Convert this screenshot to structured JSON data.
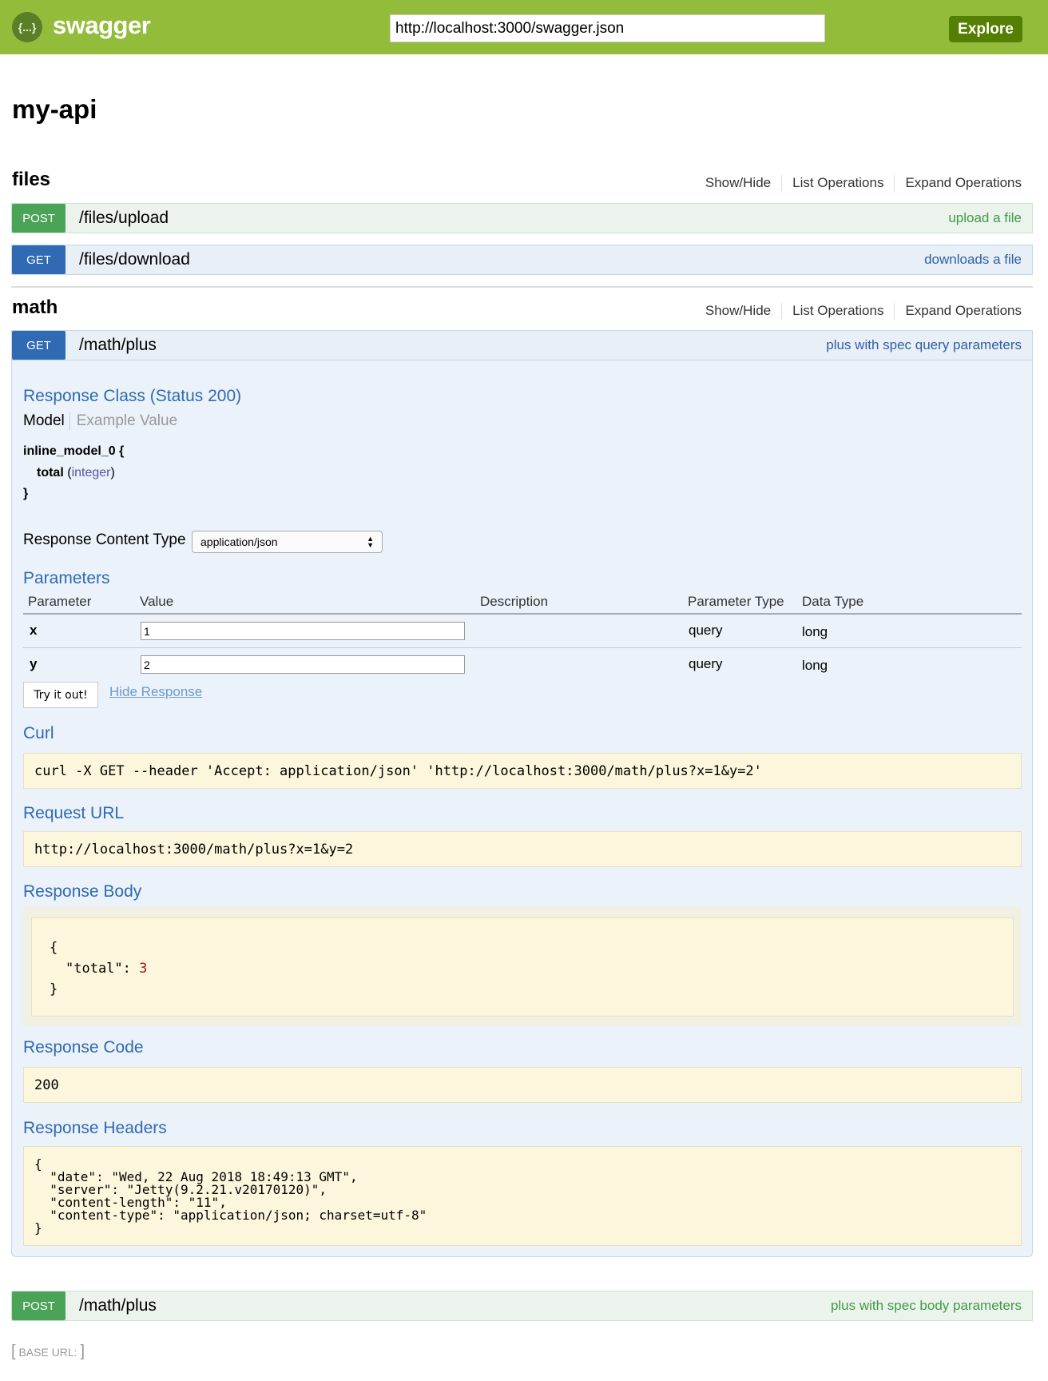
{
  "header": {
    "logo_text": "{...}",
    "brand": "swagger",
    "url": "http://localhost:3000/swagger.json",
    "explore": "Explore"
  },
  "title": "my-api",
  "colors": {
    "header": "#94bc3b",
    "post": "#4aa356",
    "get": "#2f6ab2",
    "code_bg": "#fcf6dc"
  },
  "resources": [
    {
      "name": "files",
      "links": [
        "Show/Hide",
        "List Operations",
        "Expand Operations"
      ],
      "ops": [
        {
          "method": "POST",
          "path": "/files/upload",
          "summary": "upload a file"
        },
        {
          "method": "GET",
          "path": "/files/download",
          "summary": "downloads a file"
        }
      ]
    },
    {
      "name": "math",
      "links": [
        "Show/Hide",
        "List Operations",
        "Expand Operations"
      ],
      "ops": [
        {
          "method": "GET",
          "path": "/math/plus",
          "summary": "plus with spec query parameters"
        },
        {
          "method": "POST",
          "path": "/math/plus",
          "summary": "plus with spec body parameters"
        }
      ]
    }
  ],
  "expanded": {
    "response_class": "Response Class (Status 200)",
    "tabs": [
      "Model",
      "Example Value"
    ],
    "model": {
      "name": "inline_model_0 {",
      "field": "total",
      "type": "integer",
      "close": "}"
    },
    "content_type_label": "Response Content Type",
    "content_type": "application/json",
    "parameters_title": "Parameters",
    "columns": [
      "Parameter",
      "Value",
      "Description",
      "Parameter Type",
      "Data Type"
    ],
    "params": [
      {
        "name": "x",
        "value": "1",
        "description": "",
        "ptype": "query",
        "dtype": "long"
      },
      {
        "name": "y",
        "value": "2",
        "description": "",
        "ptype": "query",
        "dtype": "long"
      }
    ],
    "try_button": "Try it out!",
    "hide_response": "Hide Response",
    "curl_title": "Curl",
    "curl": "curl -X GET --header 'Accept: application/json' 'http://localhost:3000/math/plus?x=1&y=2'",
    "request_url_title": "Request URL",
    "request_url": "http://localhost:3000/math/plus?x=1&y=2",
    "response_body_title": "Response Body",
    "body_open": "{",
    "body_key": "\"total\": ",
    "body_val": "3",
    "body_close": "}",
    "response_code_title": "Response Code",
    "response_code": "200",
    "response_headers_title": "Response Headers",
    "response_headers": "{\n  \"date\": \"Wed, 22 Aug 2018 18:49:13 GMT\",\n  \"server\": \"Jetty(9.2.21.v20170120)\",\n  \"content-length\": \"11\",\n  \"content-type\": \"application/json; charset=utf-8\"\n}"
  },
  "footer": {
    "base_url": "BASE URL: "
  }
}
